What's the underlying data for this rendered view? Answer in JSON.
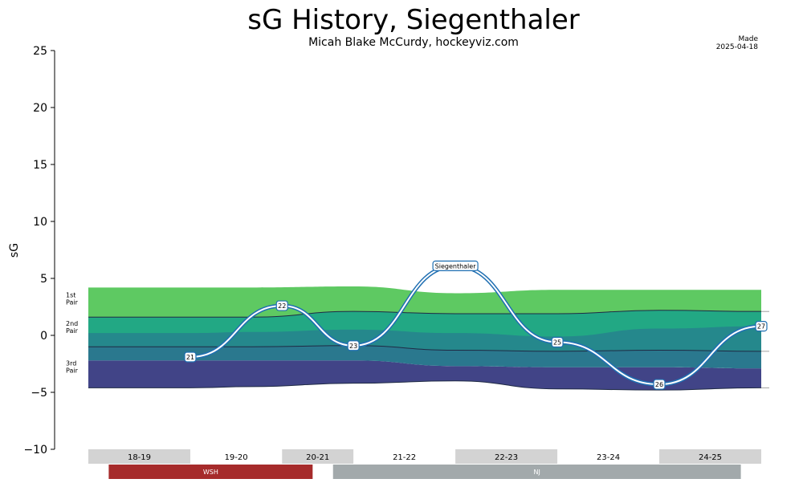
{
  "chart_data": {
    "type": "area",
    "title": "sG History, Siegenthaler",
    "subtitle": "Micah Blake McCurdy, hockeyviz.com",
    "made_label": "Made",
    "made_date": "2025-04-18",
    "ylabel": "sG",
    "ylim": [
      -10,
      25
    ],
    "yticks": [
      -10,
      -5,
      0,
      5,
      10,
      15,
      20,
      25
    ],
    "x_domain": [
      0,
      7
    ],
    "band_x": [
      0,
      1.0,
      1.6,
      2.6,
      3.6,
      4.6,
      5.6,
      6.6,
      7.0
    ],
    "band_boundaries": [
      {
        "name": "floor",
        "values": [
          -4.6,
          -4.6,
          -4.5,
          -4.2,
          -4.0,
          -4.7,
          -4.8,
          -4.6,
          -4.6
        ]
      },
      {
        "name": "3rd_lower",
        "values": [
          -2.2,
          -2.2,
          -2.2,
          -2.2,
          -2.7,
          -2.8,
          -2.8,
          -2.9,
          -2.9
        ]
      },
      {
        "name": "3rd_upper",
        "values": [
          -1.0,
          -1.0,
          -1.0,
          -0.9,
          -1.3,
          -1.4,
          -1.3,
          -1.4,
          -1.4
        ]
      },
      {
        "name": "2nd_lower",
        "values": [
          0.2,
          0.2,
          0.3,
          0.5,
          0.2,
          -0.1,
          0.6,
          0.8,
          0.8
        ]
      },
      {
        "name": "2nd_upper",
        "values": [
          1.6,
          1.6,
          1.6,
          2.1,
          1.9,
          1.9,
          2.2,
          2.1,
          2.1
        ]
      },
      {
        "name": "ceiling",
        "values": [
          4.2,
          4.2,
          4.2,
          4.3,
          3.7,
          4.0,
          4.0,
          4.0,
          4.0
        ]
      }
    ],
    "band_colors": [
      "#414487",
      "#2a788e",
      "#22a884",
      "#5ec962"
    ],
    "pair_labels": [
      {
        "line1": "1st",
        "line2": "Pair",
        "y": 3.0
      },
      {
        "line1": "2nd",
        "line2": "Pair",
        "y": 0.5
      },
      {
        "line1": "3rd",
        "line2": "Pair",
        "y": -3.0
      }
    ],
    "player": {
      "name": "Siegenthaler",
      "line_color": "#1f6fb2",
      "points": [
        {
          "x": 1.0,
          "y": -1.9,
          "label": "21"
        },
        {
          "x": 1.9,
          "y": 2.6,
          "label": "22"
        },
        {
          "x": 2.6,
          "y": -0.9,
          "label": "23"
        },
        {
          "x": 3.6,
          "y": 6.1,
          "label": "Siegenthaler"
        },
        {
          "x": 4.6,
          "y": -0.6,
          "label": "25"
        },
        {
          "x": 5.6,
          "y": -4.3,
          "label": "26"
        },
        {
          "x": 6.6,
          "y": 0.8,
          "label": "27"
        }
      ]
    },
    "seasons": [
      {
        "label": "18-19",
        "x0": 0.0,
        "x1": 1.0,
        "shaded": true
      },
      {
        "label": "19-20",
        "x0": 1.0,
        "x1": 1.9,
        "shaded": false
      },
      {
        "label": "20-21",
        "x0": 1.9,
        "x1": 2.6,
        "shaded": true
      },
      {
        "label": "21-22",
        "x0": 2.6,
        "x1": 3.6,
        "shaded": false
      },
      {
        "label": "22-23",
        "x0": 3.6,
        "x1": 4.6,
        "shaded": true
      },
      {
        "label": "23-24",
        "x0": 4.6,
        "x1": 5.6,
        "shaded": false
      },
      {
        "label": "24-25",
        "x0": 5.6,
        "x1": 6.6,
        "shaded": true
      }
    ],
    "teams": [
      {
        "label": "WSH",
        "x0": 0.2,
        "x1": 2.2,
        "color": "#a62b2b"
      },
      {
        "label": "NJ",
        "x0": 2.4,
        "x1": 6.4,
        "color": "#a2a9ab"
      }
    ]
  }
}
